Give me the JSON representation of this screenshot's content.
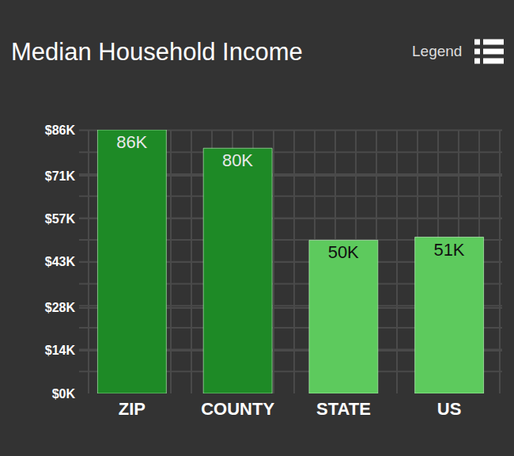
{
  "chart_data": {
    "type": "bar",
    "title": "Median Household Income",
    "annotations": [
      "Legend"
    ],
    "categories": [
      "ZIP",
      "COUNTY",
      "STATE",
      "US"
    ],
    "values": [
      86,
      80,
      50,
      51
    ],
    "value_labels": [
      "86K",
      "80K",
      "50K",
      "51K"
    ],
    "colors": [
      "#1e8a26",
      "#1e8a26",
      "#5dca5d",
      "#5dca5d"
    ],
    "ylim": [
      0,
      86
    ],
    "yticks": [
      {
        "value": 0,
        "label": "$0K"
      },
      {
        "value": 14,
        "label": "$14K"
      },
      {
        "value": 28,
        "label": "$28K"
      },
      {
        "value": 43,
        "label": "$43K"
      },
      {
        "value": 57,
        "label": "$57K"
      },
      {
        "value": 71,
        "label": "$71K"
      },
      {
        "value": 86,
        "label": "$86K"
      }
    ],
    "grid": true,
    "data_labels": true
  }
}
